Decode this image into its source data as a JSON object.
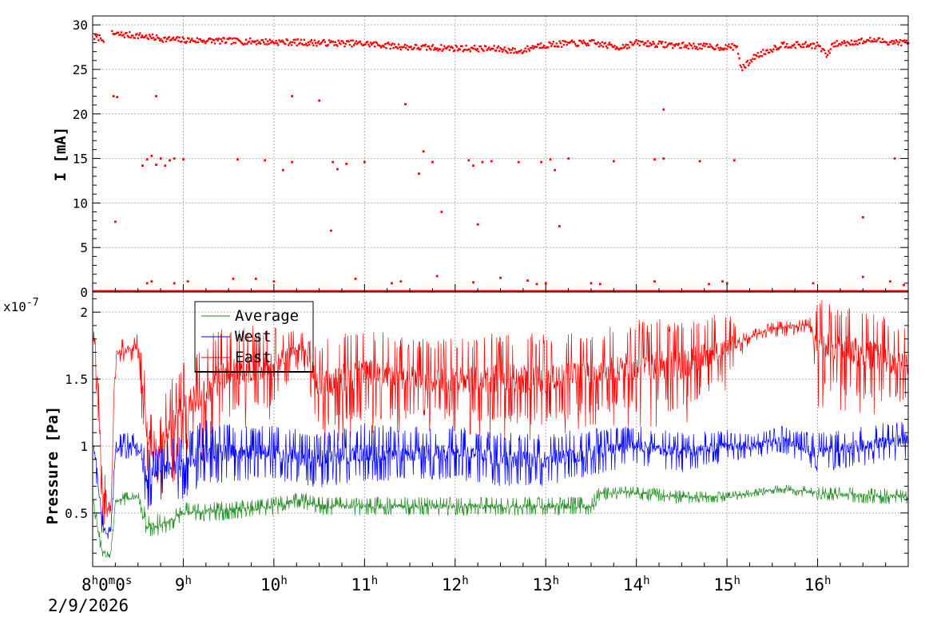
{
  "chart_data": [
    {
      "type": "scatter",
      "panel": "top",
      "ylabel": "I [mA]",
      "ylim": [
        0,
        31
      ],
      "yticks": [
        0,
        5,
        10,
        15,
        20,
        25,
        30
      ],
      "yticklabels": [
        "0",
        "5",
        "10",
        "15",
        "20",
        "25",
        "30"
      ],
      "xlim_hours": [
        8.0,
        17.0
      ],
      "grid": true,
      "colors": {
        "current": "#ff0000"
      },
      "series": [
        {
          "color": "#ff0000",
          "main_trend": {
            "x_hours": [
              8.0,
              8.1,
              8.12,
              8.15,
              8.2,
              8.5,
              8.8,
              9.0,
              9.5,
              10.0,
              10.5,
              11.0,
              11.5,
              12.0,
              12.5,
              12.7,
              12.9,
              13.2,
              13.5,
              13.8,
              14.0,
              14.3,
              14.7,
              15.0,
              15.1,
              15.15,
              15.3,
              15.6,
              16.0,
              16.1,
              16.15,
              16.3,
              16.6,
              16.8,
              17.0
            ],
            "y_mA": [
              28.6,
              28.6,
              27.2,
              null,
              29.0,
              28.8,
              28.4,
              28.3,
              28.2,
              28.1,
              28.0,
              27.9,
              27.5,
              27.4,
              27.3,
              27.0,
              27.7,
              27.9,
              28.0,
              27.5,
              28.0,
              27.8,
              27.6,
              27.5,
              27.6,
              25.0,
              26.5,
              27.8,
              27.7,
              26.5,
              27.8,
              28.0,
              28.3,
              28.1,
              28.0
            ]
          },
          "outliers": [
            [
              8.23,
              22.0
            ],
            [
              8.27,
              21.9
            ],
            [
              8.7,
              22.0
            ],
            [
              10.2,
              22.0
            ],
            [
              10.5,
              21.5
            ],
            [
              11.45,
              21.1
            ],
            [
              14.3,
              20.5
            ],
            [
              8.55,
              14.2
            ],
            [
              8.6,
              14.9
            ],
            [
              8.65,
              15.3
            ],
            [
              8.7,
              14.3
            ],
            [
              8.75,
              15.0
            ],
            [
              8.8,
              14.2
            ],
            [
              8.85,
              14.8
            ],
            [
              8.9,
              15.0
            ],
            [
              9.0,
              14.9
            ],
            [
              9.6,
              14.9
            ],
            [
              9.9,
              14.8
            ],
            [
              10.1,
              13.7
            ],
            [
              10.2,
              14.6
            ],
            [
              10.65,
              14.6
            ],
            [
              10.7,
              13.8
            ],
            [
              10.8,
              14.4
            ],
            [
              11.0,
              14.6
            ],
            [
              11.6,
              13.3
            ],
            [
              11.65,
              15.8
            ],
            [
              11.75,
              14.6
            ],
            [
              12.15,
              14.8
            ],
            [
              12.2,
              14.2
            ],
            [
              12.3,
              14.6
            ],
            [
              12.4,
              14.7
            ],
            [
              12.7,
              14.6
            ],
            [
              12.95,
              14.6
            ],
            [
              13.05,
              14.9
            ],
            [
              13.1,
              13.7
            ],
            [
              13.25,
              15.0
            ],
            [
              13.75,
              14.7
            ],
            [
              14.2,
              14.9
            ],
            [
              14.3,
              15.0
            ],
            [
              14.7,
              14.7
            ],
            [
              15.08,
              14.8
            ],
            [
              16.85,
              15.0
            ],
            [
              8.25,
              7.9
            ],
            [
              10.63,
              6.9
            ],
            [
              11.85,
              9.0
            ],
            [
              12.25,
              7.6
            ],
            [
              13.15,
              7.4
            ],
            [
              16.5,
              8.4
            ],
            [
              8.6,
              1.0
            ],
            [
              8.65,
              1.2
            ],
            [
              8.9,
              1.0
            ],
            [
              9.05,
              1.2
            ],
            [
              9.55,
              1.5
            ],
            [
              9.8,
              1.5
            ],
            [
              10.0,
              1.2
            ],
            [
              10.9,
              1.5
            ],
            [
              11.3,
              1.0
            ],
            [
              11.4,
              1.2
            ],
            [
              11.8,
              1.8
            ],
            [
              12.2,
              1.1
            ],
            [
              12.5,
              1.6
            ],
            [
              12.8,
              1.3
            ],
            [
              12.9,
              0.9
            ],
            [
              13.0,
              1.0
            ],
            [
              13.5,
              1.0
            ],
            [
              13.6,
              0.9
            ],
            [
              14.2,
              1.2
            ],
            [
              14.8,
              0.9
            ],
            [
              14.95,
              1.2
            ],
            [
              15.0,
              1.0
            ],
            [
              15.95,
              1.0
            ],
            [
              16.5,
              1.7
            ],
            [
              16.8,
              1.2
            ],
            [
              16.95,
              0.8
            ]
          ],
          "baseline_mA": 0.0
        }
      ]
    },
    {
      "type": "line",
      "panel": "bottom",
      "ylabel": "Pressure [Pa]",
      "scale_label": "x10",
      "scale_exponent": "-7",
      "ylim": [
        0.1,
        2.15
      ],
      "yticks": [
        0.5,
        1.0,
        1.5,
        2.0
      ],
      "yticklabels": [
        "0.5",
        "1",
        "1.5",
        "2"
      ],
      "xlim_hours": [
        8.0,
        17.0
      ],
      "grid": true,
      "legend_position": "top-left",
      "legend": [
        "Average",
        "West",
        "East"
      ],
      "colors": {
        "Average": "#228b22",
        "West": "#0000ff",
        "East": "#ff0000"
      },
      "series": [
        {
          "name": "East",
          "color": "#ff0000",
          "x_hours": [
            8.0,
            8.05,
            8.1,
            8.15,
            8.2,
            8.25,
            8.3,
            8.5,
            8.6,
            8.7,
            8.8,
            9.0,
            9.2,
            9.5,
            10.0,
            10.3,
            10.5,
            11.0,
            11.5,
            12.0,
            12.5,
            13.0,
            13.5,
            14.0,
            14.5,
            15.0,
            15.2,
            15.5,
            15.9,
            16.0,
            16.5,
            17.0
          ],
          "mid": [
            1.85,
            1.55,
            0.8,
            0.55,
            0.5,
            1.7,
            1.7,
            1.75,
            1.1,
            0.9,
            1.1,
            1.3,
            1.4,
            1.55,
            1.6,
            1.75,
            1.45,
            1.55,
            1.5,
            1.5,
            1.5,
            1.5,
            1.55,
            1.6,
            1.6,
            1.75,
            1.8,
            1.88,
            1.9,
            1.75,
            1.7,
            1.6
          ],
          "amp": [
            0.05,
            0.2,
            0.3,
            0.1,
            0.05,
            0.15,
            0.1,
            0.1,
            0.35,
            0.2,
            0.35,
            0.35,
            0.4,
            0.35,
            0.3,
            0.1,
            0.35,
            0.35,
            0.3,
            0.3,
            0.35,
            0.35,
            0.3,
            0.35,
            0.35,
            0.25,
            0.05,
            0.05,
            0.05,
            0.35,
            0.35,
            0.3
          ]
        },
        {
          "name": "West",
          "color": "#0000ff",
          "x_hours": [
            8.0,
            8.05,
            8.1,
            8.15,
            8.2,
            8.25,
            8.3,
            8.5,
            8.6,
            8.7,
            9.0,
            9.2,
            9.5,
            10.0,
            10.5,
            11.0,
            11.5,
            12.0,
            12.5,
            13.0,
            13.5,
            14.0,
            14.5,
            15.0,
            15.3,
            15.6,
            16.0,
            16.5,
            17.0
          ],
          "mid": [
            1.05,
            0.8,
            0.45,
            0.35,
            0.35,
            0.95,
            1.0,
            1.0,
            0.75,
            0.8,
            0.85,
            0.95,
            0.95,
            0.95,
            0.9,
            0.95,
            0.95,
            0.95,
            0.9,
            0.9,
            0.95,
            1.0,
            0.95,
            1.0,
            1.0,
            1.05,
            0.95,
            1.0,
            1.05
          ],
          "amp": [
            0.05,
            0.15,
            0.1,
            0.05,
            0.05,
            0.1,
            0.1,
            0.1,
            0.25,
            0.2,
            0.25,
            0.25,
            0.22,
            0.2,
            0.22,
            0.22,
            0.2,
            0.2,
            0.2,
            0.2,
            0.18,
            0.15,
            0.15,
            0.12,
            0.1,
            0.1,
            0.15,
            0.15,
            0.15
          ]
        },
        {
          "name": "Average",
          "color": "#228b22",
          "x_hours": [
            8.0,
            8.05,
            8.1,
            8.15,
            8.2,
            8.25,
            8.3,
            8.5,
            8.6,
            8.8,
            9.0,
            9.5,
            10.0,
            10.3,
            10.5,
            11.0,
            11.5,
            12.0,
            12.5,
            13.0,
            13.5,
            13.6,
            14.0,
            14.5,
            15.0,
            15.3,
            15.6,
            16.0,
            16.5,
            17.0
          ],
          "mid": [
            0.65,
            0.4,
            0.22,
            0.18,
            0.2,
            0.58,
            0.6,
            0.62,
            0.4,
            0.42,
            0.5,
            0.52,
            0.55,
            0.6,
            0.55,
            0.55,
            0.55,
            0.55,
            0.55,
            0.55,
            0.55,
            0.65,
            0.65,
            0.62,
            0.62,
            0.65,
            0.68,
            0.65,
            0.63,
            0.62
          ],
          "amp": [
            0.03,
            0.08,
            0.04,
            0.03,
            0.03,
            0.05,
            0.05,
            0.05,
            0.1,
            0.08,
            0.08,
            0.07,
            0.07,
            0.06,
            0.07,
            0.07,
            0.07,
            0.07,
            0.07,
            0.07,
            0.07,
            0.05,
            0.05,
            0.05,
            0.04,
            0.03,
            0.03,
            0.05,
            0.06,
            0.06
          ]
        }
      ]
    }
  ],
  "x_axis": {
    "start_label": {
      "h": "8",
      "m": "0",
      "s": "0"
    },
    "unit_h": "h",
    "unit_m": "m",
    "unit_s": "s",
    "date": "2/9/2026",
    "hour_ticks": [
      9,
      10,
      11,
      12,
      13,
      14,
      15,
      16
    ],
    "hour_labels": [
      "9",
      "10",
      "11",
      "12",
      "13",
      "14",
      "15",
      "16"
    ]
  }
}
